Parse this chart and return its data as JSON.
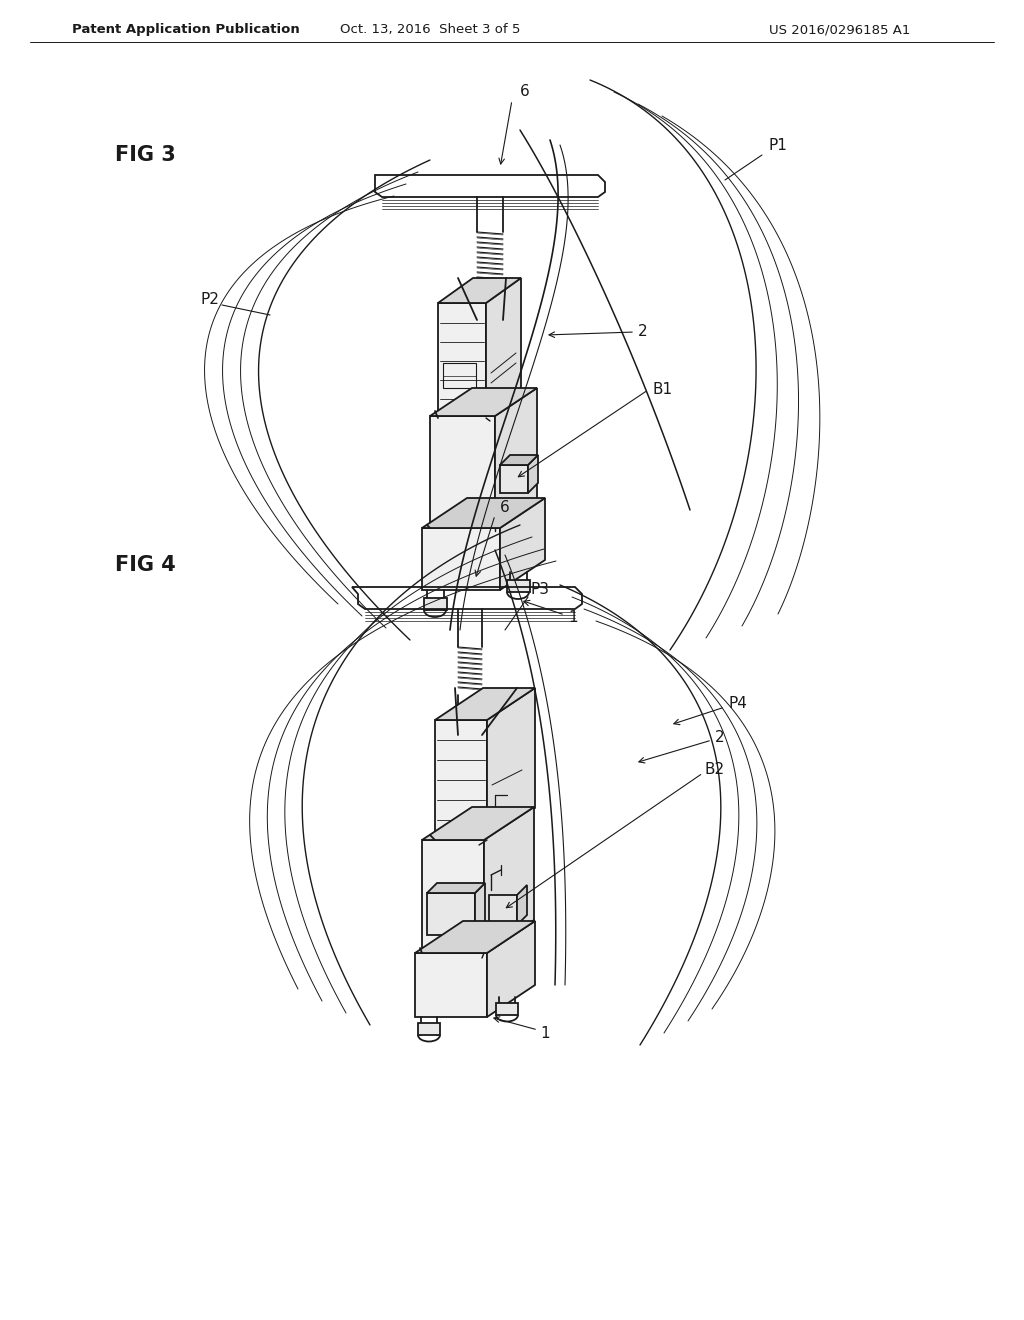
{
  "bg_color": "#ffffff",
  "line_color": "#1a1a1a",
  "header_text": "Patent Application Publication",
  "header_date": "Oct. 13, 2016  Sheet 3 of 5",
  "header_patent": "US 2016/0296185 A1",
  "header_fontsize": 9.5,
  "fig_label_fontsize": 15,
  "label_fontsize": 11
}
